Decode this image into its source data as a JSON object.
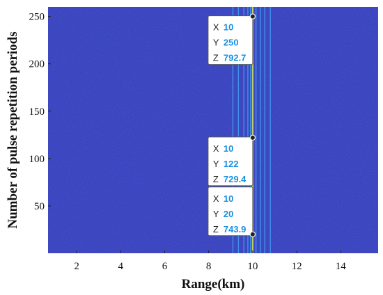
{
  "chart_data": {
    "type": "heatmap",
    "title": "",
    "xlabel": "Range(km)",
    "ylabel": "Number of pulse repetition periods",
    "xlim": [
      0.7,
      15.7
    ],
    "ylim": [
      0,
      260
    ],
    "xticks": [
      2,
      4,
      6,
      8,
      10,
      12,
      14
    ],
    "yticks": [
      50,
      100,
      150,
      200,
      250
    ],
    "grid": false,
    "background_color": "#2d3ab8",
    "stripe_color": "#3fa0ee",
    "target_line_color": "#b9cf63",
    "stripes_x": [
      9.1,
      9.35,
      9.6,
      9.78,
      9.9,
      10.15,
      10.35,
      10.55,
      10.8
    ],
    "target_x": 10,
    "datatips": [
      {
        "x": 10,
        "y": 250,
        "z": 792.7
      },
      {
        "x": 10,
        "y": 122,
        "z": 729.4
      },
      {
        "x": 10,
        "y": 20,
        "z": 743.9
      }
    ],
    "datatip_labels": {
      "x": "X",
      "y": "Y",
      "z": "Z"
    },
    "tip_value_color": "#1a8fe0"
  }
}
